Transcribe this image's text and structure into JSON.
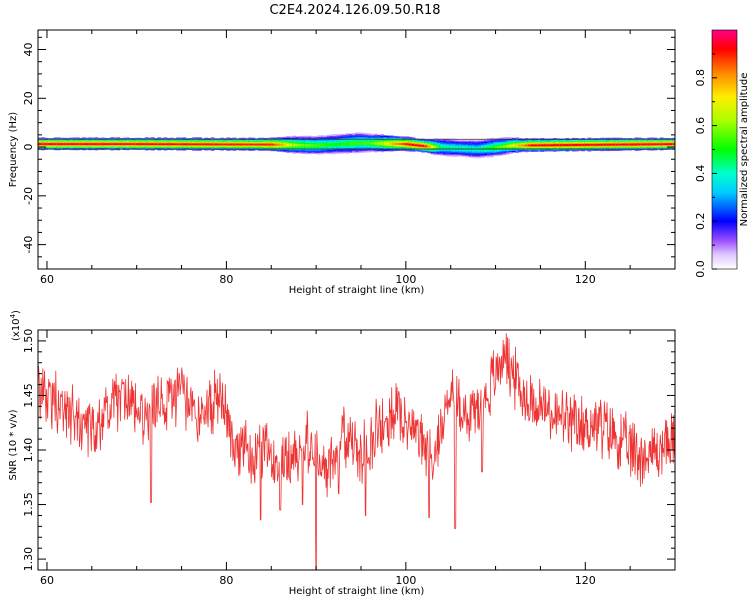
{
  "title": "C2E4.2024.126.09.50.R18",
  "chart_data": [
    {
      "type": "heatmap",
      "xlabel": "Height of straight line (km)",
      "ylabel": "Frequency (Hz)",
      "xlim": [
        59,
        130
      ],
      "ylim": [
        -50,
        48
      ],
      "x_ticks": [
        60,
        80,
        100,
        120
      ],
      "y_ticks": [
        -40,
        -20,
        0,
        20,
        40
      ],
      "colorbar": {
        "label": "Normalized spectral amplitude",
        "range": [
          0,
          1
        ],
        "ticks": [
          0.0,
          0.2,
          0.4,
          0.6,
          0.8
        ]
      },
      "band": {
        "center_freq": [
          {
            "x": 59,
            "f": 1.2
          },
          {
            "x": 70,
            "f": 1.2
          },
          {
            "x": 85,
            "f": 1.0
          },
          {
            "x": 90,
            "f": 0.6
          },
          {
            "x": 95,
            "f": 1.6
          },
          {
            "x": 100,
            "f": 1.2
          },
          {
            "x": 103,
            "f": 0.0
          },
          {
            "x": 108,
            "f": -1.0
          },
          {
            "x": 112,
            "f": 0.6
          },
          {
            "x": 130,
            "f": 1.2
          }
        ],
        "half_width": [
          {
            "x": 59,
            "w": 2.5
          },
          {
            "x": 84,
            "w": 2.6
          },
          {
            "x": 88,
            "w": 3.6
          },
          {
            "x": 94,
            "w": 4.2
          },
          {
            "x": 100,
            "w": 3.0
          },
          {
            "x": 102,
            "w": 2.6
          },
          {
            "x": 104,
            "w": 3.6
          },
          {
            "x": 110,
            "w": 3.8
          },
          {
            "x": 113,
            "w": 2.8
          },
          {
            "x": 130,
            "w": 2.5
          }
        ],
        "peak_amplitude": [
          {
            "x": 59,
            "a": 0.95
          },
          {
            "x": 85,
            "a": 0.9
          },
          {
            "x": 88,
            "a": 0.6
          },
          {
            "x": 92,
            "a": 0.5
          },
          {
            "x": 96,
            "a": 0.55
          },
          {
            "x": 100,
            "a": 0.9
          },
          {
            "x": 102,
            "a": 0.95
          },
          {
            "x": 104,
            "a": 0.45
          },
          {
            "x": 108,
            "a": 0.42
          },
          {
            "x": 111,
            "a": 0.6
          },
          {
            "x": 114,
            "a": 0.92
          },
          {
            "x": 130,
            "a": 0.95
          }
        ]
      }
    },
    {
      "type": "line",
      "xlabel": "Height of straight line (km)",
      "ylabel": "SNR (10 * v/v)",
      "yscale_label": "(x10",
      "yscale_exp": "4",
      "yscale_close": ")",
      "xlim": [
        59,
        130
      ],
      "ylim": [
        1.29,
        1.51
      ],
      "x_ticks": [
        60,
        80,
        100,
        120
      ],
      "y_ticks": [
        1.3,
        1.35,
        1.4,
        1.45,
        1.5
      ],
      "y_tick_labels": [
        "1.30",
        "1.35",
        "1.40",
        "1.45",
        "1.50"
      ],
      "color": "#ee3333",
      "series": [
        {
          "x": [
            59,
            61,
            63,
            65,
            67,
            69,
            71,
            73,
            75,
            77,
            79,
            81,
            83,
            85,
            87,
            89,
            91,
            93,
            95,
            97,
            99,
            101,
            103,
            105,
            107,
            109,
            111,
            113,
            115,
            117,
            119,
            121,
            123,
            125,
            127,
            130
          ],
          "y": [
            1.455,
            1.445,
            1.43,
            1.42,
            1.44,
            1.45,
            1.425,
            1.445,
            1.45,
            1.43,
            1.45,
            1.41,
            1.39,
            1.4,
            1.39,
            1.41,
            1.38,
            1.415,
            1.395,
            1.42,
            1.435,
            1.42,
            1.39,
            1.455,
            1.43,
            1.45,
            1.49,
            1.45,
            1.44,
            1.43,
            1.42,
            1.425,
            1.415,
            1.4,
            1.395,
            1.41
          ]
        }
      ],
      "dips": [
        {
          "x": 71.6,
          "y": 1.352
        },
        {
          "x": 83.8,
          "y": 1.336
        },
        {
          "x": 86.0,
          "y": 1.345
        },
        {
          "x": 88.5,
          "y": 1.35
        },
        {
          "x": 90.0,
          "y": 1.29
        },
        {
          "x": 92.5,
          "y": 1.36
        },
        {
          "x": 95.5,
          "y": 1.34
        },
        {
          "x": 102.6,
          "y": 1.338
        },
        {
          "x": 105.5,
          "y": 1.328
        },
        {
          "x": 108.5,
          "y": 1.38
        }
      ]
    }
  ]
}
